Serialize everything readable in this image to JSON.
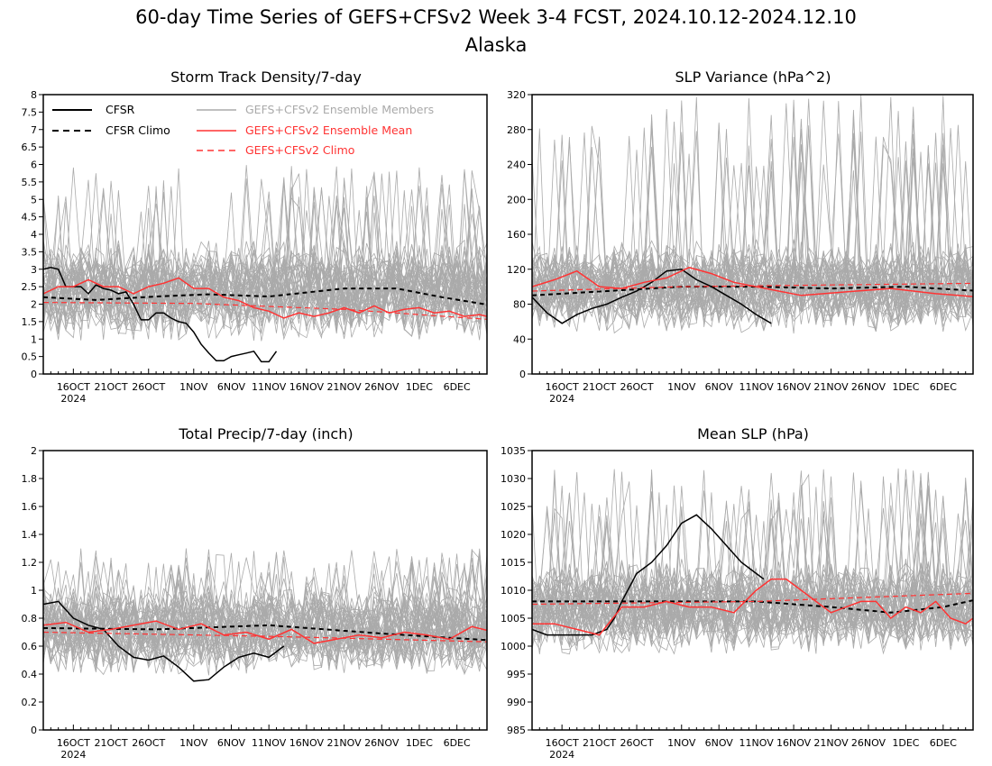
{
  "figure": {
    "title_line1": "60-day Time Series of GEFS+CFSv2 Week 3-4 FCST, 2024.10.12-2024.12.10",
    "title_line2": "Alaska"
  },
  "legend": {
    "cfsr": "CFSR",
    "cfsr_climo": "CFSR Climo",
    "members": "GEFS+CFSv2 Ensemble Members",
    "mean": "GEFS+CFSv2 Ensemble Mean",
    "climo": "GEFS+CFSv2 Climo"
  },
  "colors": {
    "cfsr": "#000000",
    "members": "#aaaaaa",
    "mean": "#ff3333",
    "climo": "#ff3333"
  },
  "x_ticks": [
    "16OCT",
    "21OCT",
    "26OCT",
    "1NOV",
    "6NOV",
    "11NOV",
    "16NOV",
    "21NOV",
    "26NOV",
    "1DEC",
    "6DEC"
  ],
  "x_year": "2024",
  "chart_data": [
    {
      "type": "line",
      "title": "Storm Track Density/7-day",
      "x_start": "2024-10-12",
      "x_end": "2024-12-10",
      "ylim": [
        0,
        8
      ],
      "yticks": [
        "0",
        "0.5",
        "1",
        "1.5",
        "2",
        "2.5",
        "3",
        "3.5",
        "4",
        "4.5",
        "5",
        "5.5",
        "6",
        "6.5",
        "7",
        "7.5",
        "8"
      ],
      "legend_position": "top",
      "members": {
        "count": 45,
        "center": 2.4,
        "spread": 1.5,
        "max_peak": 6.0
      },
      "series": [
        {
          "name": "CFSR",
          "days": [
            0,
            1,
            2,
            3,
            4,
            5,
            6,
            7,
            8,
            9,
            10,
            11,
            12,
            13,
            14,
            15,
            16,
            17,
            18,
            19,
            20,
            21,
            22,
            23,
            24,
            25,
            26,
            27,
            28,
            29,
            30,
            31
          ],
          "values": [
            3.0,
            3.05,
            3.0,
            2.5,
            2.5,
            2.5,
            2.3,
            2.55,
            2.45,
            2.4,
            2.3,
            2.35,
            2.0,
            1.55,
            1.55,
            1.75,
            1.75,
            1.6,
            1.5,
            1.45,
            1.2,
            0.85,
            0.6,
            0.38,
            0.38,
            0.5,
            0.55,
            0.6,
            0.65,
            0.35,
            0.35,
            0.65
          ]
        },
        {
          "name": "CFSR Climo",
          "days": [
            0,
            7,
            15,
            22,
            30,
            40,
            47,
            53,
            60
          ],
          "values": [
            2.2,
            2.12,
            2.22,
            2.28,
            2.22,
            2.45,
            2.45,
            2.2,
            1.95
          ]
        },
        {
          "name": "GEFS+CFSv2 Ensemble Mean",
          "days": [
            0,
            2,
            4,
            6,
            8,
            10,
            12,
            14,
            16,
            18,
            20,
            22,
            24,
            26,
            28,
            30,
            32,
            34,
            36,
            38,
            40,
            42,
            44,
            46,
            48,
            50,
            52,
            54,
            56,
            58,
            60
          ],
          "values": [
            2.3,
            2.5,
            2.5,
            2.7,
            2.5,
            2.5,
            2.3,
            2.5,
            2.6,
            2.75,
            2.45,
            2.45,
            2.2,
            2.1,
            1.9,
            1.8,
            1.6,
            1.75,
            1.65,
            1.75,
            1.9,
            1.75,
            1.95,
            1.75,
            1.85,
            1.9,
            1.75,
            1.8,
            1.65,
            1.7,
            1.6
          ]
        },
        {
          "name": "GEFS+CFSv2 Climo",
          "days": [
            0,
            20,
            40,
            60
          ],
          "values": [
            2.05,
            2.02,
            1.85,
            1.55
          ]
        }
      ]
    },
    {
      "type": "line",
      "title": "SLP Variance (hPa^2)",
      "x_start": "2024-10-12",
      "x_end": "2024-12-10",
      "ylim": [
        0,
        320
      ],
      "yticks": [
        "0",
        "40",
        "80",
        "120",
        "160",
        "200",
        "240",
        "280",
        "320"
      ],
      "members": {
        "count": 45,
        "center": 100,
        "spread": 55,
        "max_peak": 320
      },
      "series": [
        {
          "name": "CFSR",
          "days": [
            0,
            2,
            4,
            6,
            8,
            10,
            12,
            14,
            16,
            18,
            20,
            22,
            24,
            26,
            28,
            30,
            32
          ],
          "values": [
            88,
            70,
            58,
            68,
            75,
            80,
            88,
            95,
            105,
            118,
            120,
            108,
            100,
            90,
            80,
            68,
            58
          ]
        },
        {
          "name": "CFSR Climo",
          "days": [
            0,
            10,
            20,
            30,
            40,
            50,
            60
          ],
          "values": [
            90,
            95,
            100,
            100,
            98,
            100,
            95
          ]
        },
        {
          "name": "GEFS+CFSv2 Ensemble Mean",
          "days": [
            0,
            3,
            6,
            9,
            12,
            15,
            18,
            21,
            24,
            27,
            30,
            33,
            36,
            39,
            42,
            45,
            48,
            51,
            54,
            57,
            60
          ],
          "values": [
            100,
            108,
            118,
            100,
            98,
            105,
            110,
            122,
            115,
            105,
            100,
            95,
            90,
            92,
            94,
            96,
            98,
            95,
            92,
            90,
            88
          ]
        },
        {
          "name": "GEFS+CFSv2 Climo",
          "days": [
            0,
            20,
            40,
            60
          ],
          "values": [
            95,
            100,
            102,
            104
          ]
        }
      ]
    },
    {
      "type": "line",
      "title": "Total Precip/7-day (inch)",
      "x_start": "2024-10-12",
      "x_end": "2024-12-10",
      "ylim": [
        0,
        2
      ],
      "yticks": [
        "0",
        "0.2",
        "0.4",
        "0.6",
        "0.8",
        "1",
        "1.2",
        "1.4",
        "1.6",
        "1.8",
        "2"
      ],
      "members": {
        "count": 45,
        "center": 0.72,
        "spread": 0.35,
        "max_peak": 1.3
      },
      "series": [
        {
          "name": "CFSR",
          "days": [
            0,
            2,
            4,
            6,
            8,
            10,
            12,
            14,
            16,
            18,
            20,
            22,
            24,
            26,
            28,
            30,
            32
          ],
          "values": [
            0.9,
            0.92,
            0.8,
            0.75,
            0.72,
            0.6,
            0.52,
            0.5,
            0.53,
            0.45,
            0.35,
            0.36,
            0.45,
            0.52,
            0.55,
            0.52,
            0.6
          ]
        },
        {
          "name": "CFSR Climo",
          "days": [
            0,
            15,
            30,
            45,
            60
          ],
          "values": [
            0.73,
            0.72,
            0.75,
            0.69,
            0.64
          ]
        },
        {
          "name": "GEFS+CFSv2 Ensemble Mean",
          "days": [
            0,
            3,
            6,
            9,
            12,
            15,
            18,
            21,
            24,
            27,
            30,
            33,
            36,
            39,
            42,
            45,
            48,
            51,
            54,
            57,
            60
          ],
          "values": [
            0.75,
            0.77,
            0.7,
            0.72,
            0.75,
            0.78,
            0.72,
            0.76,
            0.68,
            0.7,
            0.65,
            0.72,
            0.62,
            0.65,
            0.68,
            0.66,
            0.7,
            0.68,
            0.65,
            0.74,
            0.7
          ]
        },
        {
          "name": "GEFS+CFSv2 Climo",
          "days": [
            0,
            30,
            60
          ],
          "values": [
            0.7,
            0.67,
            0.63
          ]
        }
      ]
    },
    {
      "type": "line",
      "title": "Mean SLP (hPa)",
      "x_start": "2024-10-12",
      "x_end": "2024-12-10",
      "ylim": [
        985,
        1035
      ],
      "yticks": [
        "985",
        "990",
        "995",
        "1000",
        "1005",
        "1010",
        "1015",
        "1020",
        "1025",
        "1030",
        "1035"
      ],
      "members": {
        "count": 45,
        "center": 1007,
        "spread": 9,
        "max_peak": 1032
      },
      "series": [
        {
          "name": "CFSR",
          "days": [
            0,
            2,
            4,
            6,
            8,
            10,
            11,
            12,
            14,
            16,
            18,
            20,
            22,
            24,
            26,
            28,
            30,
            31
          ],
          "values": [
            1003,
            1002,
            1002,
            1002,
            1002,
            1003,
            1005,
            1008,
            1013,
            1015,
            1018,
            1022,
            1023.5,
            1021,
            1018,
            1015,
            1013,
            1012
          ]
        },
        {
          "name": "CFSR Climo",
          "days": [
            0,
            15,
            30,
            40,
            48,
            55,
            60
          ],
          "values": [
            1008,
            1008,
            1008,
            1007,
            1006,
            1007,
            1008.5
          ]
        },
        {
          "name": "GEFS+CFSv2 Ensemble Mean",
          "days": [
            0,
            3,
            6,
            9,
            12,
            15,
            18,
            21,
            24,
            27,
            30,
            32,
            34,
            36,
            38,
            40,
            42,
            44,
            46,
            48,
            50,
            52,
            54,
            56,
            58,
            60
          ],
          "values": [
            1004,
            1004,
            1003,
            1002,
            1007,
            1007,
            1008,
            1007,
            1007,
            1006,
            1010,
            1012,
            1012,
            1010,
            1008,
            1006,
            1007,
            1008,
            1008,
            1005,
            1007,
            1006,
            1008,
            1005,
            1004,
            1006
          ]
        },
        {
          "name": "GEFS+CFSv2 Climo",
          "days": [
            0,
            30,
            60
          ],
          "values": [
            1007.5,
            1008,
            1009.5
          ]
        }
      ]
    }
  ]
}
